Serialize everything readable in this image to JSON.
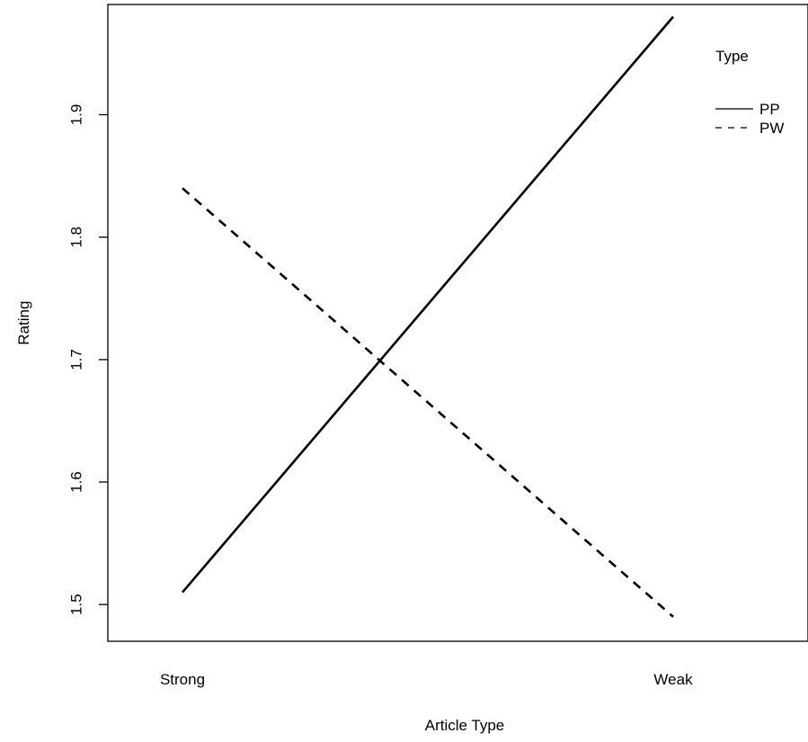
{
  "chart_data": {
    "type": "line",
    "title": "",
    "xlabel": "Article Type",
    "ylabel": "Rating",
    "categories": [
      "Strong",
      "Weak"
    ],
    "ylim": [
      1.47,
      1.99
    ],
    "yticks": [
      "1.5",
      "1.6",
      "1.7",
      "1.8",
      "1.9"
    ],
    "series": [
      {
        "name": "PP",
        "values": [
          1.51,
          1.98
        ],
        "line_style": "solid",
        "color": "#000000"
      },
      {
        "name": "PW",
        "values": [
          1.84,
          1.49
        ],
        "line_style": "dashed",
        "color": "#000000"
      }
    ],
    "legend": {
      "title": "Type",
      "position": "top-right"
    },
    "grid": false
  }
}
